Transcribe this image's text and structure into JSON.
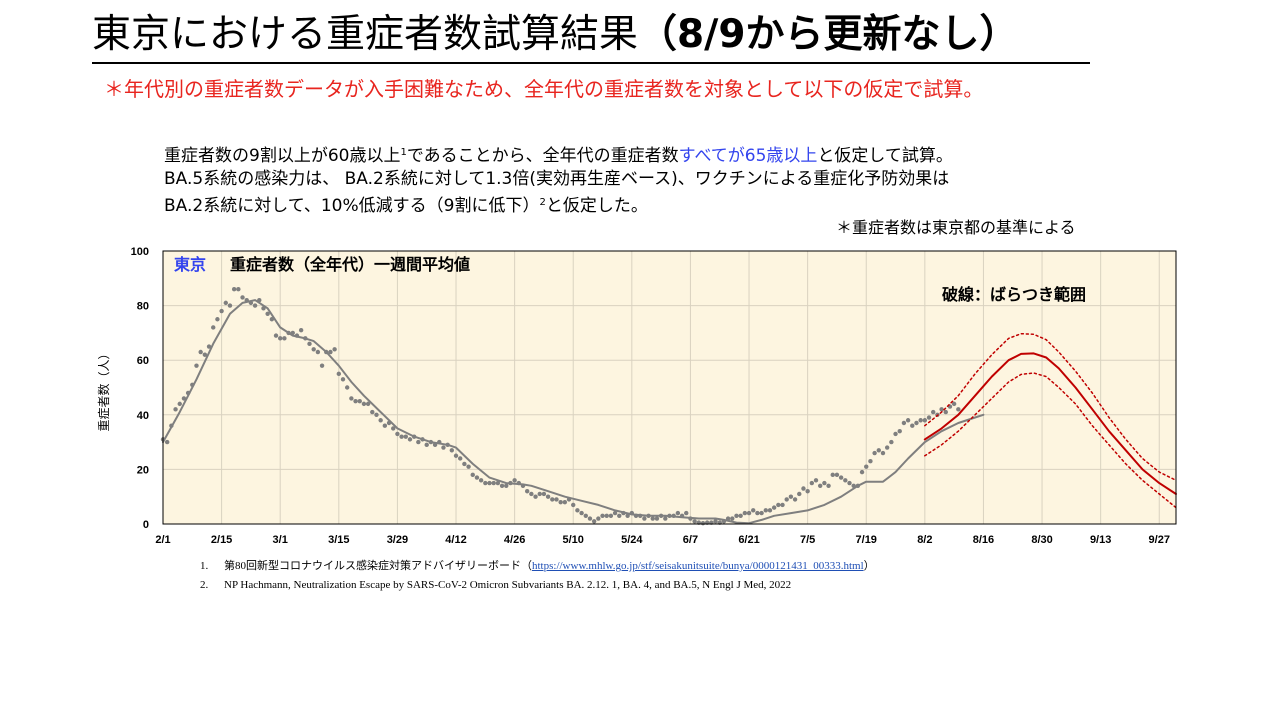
{
  "page": {
    "title_main": "東京における重症者数試算結果",
    "title_bold": "（8/9から更新なし）",
    "subtitle": "＊年代別の重症者数データが入手困難なため、全年代の重症者数を対象として以下の仮定で試算。",
    "desc_line1_a": "重症者数の9割以上が60歳以上",
    "desc_line1_sup": "1",
    "desc_line1_b": "であることから、全年代の重症者数",
    "desc_line1_blue": "すべてが65歳以上",
    "desc_line1_c": "と仮定して試算。",
    "desc_line2": "BA.5系統の感染力は、 BA.2系統に対して1.3倍(実効再生産ベース)、ワクチンによる重症化予防効果は",
    "desc_line3_a": "BA.2系統に対して、10%低減する（9割に低下）",
    "desc_line3_sup": "2",
    "desc_line3_b": "と仮定した。",
    "note": "＊重症者数は東京都の基準による",
    "ref1_num": "1.",
    "ref1_text": "第80回新型コロナウイルス感染症対策アドバイザリーボード（",
    "ref1_link": "https://www.mhlw.go.jp/stf/seisakunitsuite/bunya/0000121431_00333.html",
    "ref1_close": "）",
    "ref2_num": "2.",
    "ref2_text": "NP Hachmann, Neutralization Escape by SARS-CoV-2 Omicron Subvariants BA. 2.12. 1, BA. 4, and BA.5, N Engl J Med, 2022"
  },
  "colors": {
    "title": "#000000",
    "subtitle": "#e8251f",
    "highlight": "#3344ee",
    "plot_bg": "#fdf5e0",
    "observed": "#7f7f7f",
    "forecast": "#c00000"
  },
  "chart_data": {
    "type": "line",
    "label_tokyo": "東京",
    "label_series": "重症者数（全年代）一週間平均値",
    "annotation": "破線：ばらつき範囲",
    "ylabel": "重症者数（人）",
    "xlabel": "",
    "ylim": [
      0,
      100
    ],
    "y_ticks": [
      0,
      20,
      40,
      60,
      80,
      100
    ],
    "x_start": "2/1",
    "x_ticks": [
      {
        "label": "2/1",
        "day": 0
      },
      {
        "label": "2/15",
        "day": 14
      },
      {
        "label": "3/1",
        "day": 28
      },
      {
        "label": "3/15",
        "day": 42
      },
      {
        "label": "3/29",
        "day": 56
      },
      {
        "label": "4/12",
        "day": 70
      },
      {
        "label": "4/26",
        "day": 84
      },
      {
        "label": "5/10",
        "day": 98
      },
      {
        "label": "5/24",
        "day": 112
      },
      {
        "label": "6/7",
        "day": 126
      },
      {
        "label": "6/21",
        "day": 140
      },
      {
        "label": "7/5",
        "day": 154
      },
      {
        "label": "7/19",
        "day": 168
      },
      {
        "label": "8/2",
        "day": 182
      },
      {
        "label": "8/16",
        "day": 196
      },
      {
        "label": "8/30",
        "day": 210
      },
      {
        "label": "9/13",
        "day": 224
      },
      {
        "label": "9/27",
        "day": 238
      }
    ],
    "x_max_day": 242,
    "series": [
      {
        "style": "solid",
        "role": "observed-trend",
        "points": [
          [
            0,
            30
          ],
          [
            4,
            41
          ],
          [
            8,
            53
          ],
          [
            12,
            66
          ],
          [
            16,
            77
          ],
          [
            19,
            81
          ],
          [
            22,
            82
          ],
          [
            25,
            79
          ],
          [
            28,
            72
          ],
          [
            31,
            69
          ],
          [
            34,
            68
          ],
          [
            36,
            67
          ],
          [
            39,
            63
          ],
          [
            42,
            58
          ],
          [
            45,
            52
          ],
          [
            48,
            47
          ],
          [
            52,
            41
          ],
          [
            56,
            35
          ],
          [
            60,
            32
          ],
          [
            64,
            30
          ],
          [
            68,
            29
          ],
          [
            70,
            28
          ],
          [
            74,
            22
          ],
          [
            78,
            17
          ],
          [
            82,
            15
          ],
          [
            86,
            14.5
          ],
          [
            88,
            14
          ],
          [
            92,
            12
          ],
          [
            96,
            10
          ],
          [
            100,
            8.5
          ],
          [
            104,
            7
          ],
          [
            108,
            5
          ],
          [
            112,
            3.5
          ],
          [
            116,
            3
          ],
          [
            120,
            3
          ],
          [
            124,
            2.5
          ],
          [
            128,
            2
          ],
          [
            132,
            2
          ],
          [
            134,
            1.5
          ],
          [
            137,
            0.5
          ],
          [
            140,
            0.3
          ],
          [
            143,
            1.5
          ],
          [
            146,
            3
          ],
          [
            150,
            4
          ],
          [
            154,
            5
          ],
          [
            158,
            7
          ],
          [
            162,
            10
          ],
          [
            166,
            14
          ],
          [
            168,
            15.5
          ],
          [
            172,
            15.5
          ],
          [
            175,
            19
          ],
          [
            178,
            24
          ],
          [
            182,
            30
          ],
          [
            186,
            34
          ],
          [
            190,
            37
          ],
          [
            194,
            39
          ],
          [
            196,
            40
          ]
        ]
      },
      {
        "style": "dots",
        "role": "observed-daily",
        "points": [
          [
            0,
            31
          ],
          [
            1,
            30
          ],
          [
            2,
            36
          ],
          [
            3,
            42
          ],
          [
            4,
            44
          ],
          [
            5,
            46
          ],
          [
            6,
            48
          ],
          [
            7,
            51
          ],
          [
            8,
            58
          ],
          [
            9,
            63
          ],
          [
            10,
            62
          ],
          [
            11,
            65
          ],
          [
            12,
            72
          ],
          [
            13,
            75
          ],
          [
            14,
            78
          ],
          [
            15,
            81
          ],
          [
            16,
            80
          ],
          [
            17,
            86
          ],
          [
            18,
            86
          ],
          [
            19,
            83
          ],
          [
            20,
            82
          ],
          [
            21,
            81
          ],
          [
            22,
            80
          ],
          [
            23,
            82
          ],
          [
            24,
            79
          ],
          [
            25,
            77
          ],
          [
            26,
            75
          ],
          [
            27,
            69
          ],
          [
            28,
            68
          ],
          [
            29,
            68
          ],
          [
            30,
            70
          ],
          [
            31,
            70
          ],
          [
            32,
            69
          ],
          [
            33,
            71
          ],
          [
            34,
            68
          ],
          [
            35,
            66
          ],
          [
            36,
            64
          ],
          [
            37,
            63
          ],
          [
            38,
            58
          ],
          [
            39,
            63
          ],
          [
            40,
            63
          ],
          [
            41,
            64
          ],
          [
            42,
            55
          ],
          [
            43,
            53
          ],
          [
            44,
            50
          ],
          [
            45,
            46
          ],
          [
            46,
            45
          ],
          [
            47,
            45
          ],
          [
            48,
            44
          ],
          [
            49,
            44
          ],
          [
            50,
            41
          ],
          [
            51,
            40
          ],
          [
            52,
            38
          ],
          [
            53,
            36
          ],
          [
            54,
            37
          ],
          [
            55,
            35
          ],
          [
            56,
            33
          ],
          [
            57,
            32
          ],
          [
            58,
            32
          ],
          [
            59,
            31
          ],
          [
            60,
            32
          ],
          [
            61,
            30
          ],
          [
            62,
            31
          ],
          [
            63,
            29
          ],
          [
            64,
            30
          ],
          [
            65,
            29
          ],
          [
            66,
            30
          ],
          [
            67,
            28
          ],
          [
            68,
            29
          ],
          [
            69,
            27
          ],
          [
            70,
            25
          ],
          [
            71,
            24
          ],
          [
            72,
            22
          ],
          [
            73,
            21
          ],
          [
            74,
            18
          ],
          [
            75,
            17
          ],
          [
            76,
            16
          ],
          [
            77,
            15
          ],
          [
            78,
            15
          ],
          [
            79,
            15
          ],
          [
            80,
            15
          ],
          [
            81,
            14
          ],
          [
            82,
            14
          ],
          [
            83,
            15
          ],
          [
            84,
            16
          ],
          [
            85,
            15
          ],
          [
            86,
            14
          ],
          [
            87,
            12
          ],
          [
            88,
            11
          ],
          [
            89,
            10
          ],
          [
            90,
            11
          ],
          [
            91,
            11
          ],
          [
            92,
            10
          ],
          [
            93,
            9
          ],
          [
            94,
            9
          ],
          [
            95,
            8
          ],
          [
            96,
            8
          ],
          [
            97,
            9
          ],
          [
            98,
            7
          ],
          [
            99,
            5
          ],
          [
            100,
            4
          ],
          [
            101,
            3
          ],
          [
            102,
            2
          ],
          [
            103,
            1
          ],
          [
            104,
            2
          ],
          [
            105,
            3
          ],
          [
            106,
            3
          ],
          [
            107,
            3
          ],
          [
            108,
            4
          ],
          [
            109,
            3
          ],
          [
            110,
            4
          ],
          [
            111,
            3
          ],
          [
            112,
            4
          ],
          [
            113,
            3
          ],
          [
            114,
            3
          ],
          [
            115,
            2
          ],
          [
            116,
            3
          ],
          [
            117,
            2
          ],
          [
            118,
            2
          ],
          [
            119,
            3
          ],
          [
            120,
            2
          ],
          [
            121,
            3
          ],
          [
            122,
            3
          ],
          [
            123,
            4
          ],
          [
            124,
            3
          ],
          [
            125,
            4
          ],
          [
            126,
            2
          ],
          [
            127,
            1
          ],
          [
            128,
            0.5
          ],
          [
            129,
            0.3
          ],
          [
            130,
            0.5
          ],
          [
            131,
            0.5
          ],
          [
            132,
            1
          ],
          [
            133,
            0.5
          ],
          [
            134,
            1
          ],
          [
            135,
            2
          ],
          [
            136,
            2
          ],
          [
            137,
            3
          ],
          [
            138,
            3
          ],
          [
            139,
            4
          ],
          [
            140,
            4
          ],
          [
            141,
            5
          ],
          [
            142,
            4
          ],
          [
            143,
            4
          ],
          [
            144,
            5
          ],
          [
            145,
            5
          ],
          [
            146,
            6
          ],
          [
            147,
            7
          ],
          [
            148,
            7
          ],
          [
            149,
            9
          ],
          [
            150,
            10
          ],
          [
            151,
            9
          ],
          [
            152,
            11
          ],
          [
            153,
            13
          ],
          [
            154,
            12
          ],
          [
            155,
            15
          ],
          [
            156,
            16
          ],
          [
            157,
            14
          ],
          [
            158,
            15
          ],
          [
            159,
            14
          ],
          [
            160,
            18
          ],
          [
            161,
            18
          ],
          [
            162,
            17
          ],
          [
            163,
            16
          ],
          [
            164,
            15
          ],
          [
            165,
            14
          ],
          [
            166,
            14
          ],
          [
            167,
            19
          ],
          [
            168,
            21
          ],
          [
            169,
            23
          ],
          [
            170,
            26
          ],
          [
            171,
            27
          ],
          [
            172,
            26
          ],
          [
            173,
            28
          ],
          [
            174,
            30
          ],
          [
            175,
            33
          ],
          [
            176,
            34
          ],
          [
            177,
            37
          ],
          [
            178,
            38
          ],
          [
            179,
            36
          ],
          [
            180,
            37
          ],
          [
            181,
            38
          ],
          [
            182,
            38
          ],
          [
            183,
            39
          ],
          [
            184,
            41
          ],
          [
            185,
            40
          ],
          [
            186,
            42
          ],
          [
            187,
            41
          ],
          [
            188,
            43
          ],
          [
            189,
            44
          ],
          [
            190,
            42
          ]
        ]
      },
      {
        "style": "solid",
        "role": "forecast",
        "points": [
          [
            182,
            31
          ],
          [
            186,
            35
          ],
          [
            190,
            40
          ],
          [
            194,
            47
          ],
          [
            198,
            54
          ],
          [
            202,
            60
          ],
          [
            205,
            62.3
          ],
          [
            208,
            62.5
          ],
          [
            211,
            61
          ],
          [
            214,
            57
          ],
          [
            218,
            50
          ],
          [
            222,
            42
          ],
          [
            226,
            34
          ],
          [
            230,
            27
          ],
          [
            234,
            20
          ],
          [
            238,
            15
          ],
          [
            242,
            11
          ]
        ]
      },
      {
        "style": "dotted",
        "role": "forecast-upper",
        "points": [
          [
            182,
            36
          ],
          [
            186,
            41
          ],
          [
            190,
            47
          ],
          [
            194,
            55
          ],
          [
            198,
            62
          ],
          [
            202,
            68
          ],
          [
            205,
            69.7
          ],
          [
            208,
            69.5
          ],
          [
            211,
            67.5
          ],
          [
            214,
            63
          ],
          [
            218,
            56
          ],
          [
            222,
            48
          ],
          [
            226,
            39
          ],
          [
            230,
            31
          ],
          [
            234,
            24
          ],
          [
            238,
            19
          ],
          [
            242,
            16
          ]
        ]
      },
      {
        "style": "dotted",
        "role": "forecast-lower",
        "points": [
          [
            182,
            25
          ],
          [
            186,
            29
          ],
          [
            190,
            34
          ],
          [
            194,
            40
          ],
          [
            198,
            46
          ],
          [
            202,
            52
          ],
          [
            205,
            54.8
          ],
          [
            208,
            55.3
          ],
          [
            211,
            54
          ],
          [
            214,
            50
          ],
          [
            218,
            44
          ],
          [
            222,
            36
          ],
          [
            226,
            29
          ],
          [
            230,
            22
          ],
          [
            234,
            16
          ],
          [
            238,
            11
          ],
          [
            242,
            6
          ]
        ]
      }
    ]
  }
}
